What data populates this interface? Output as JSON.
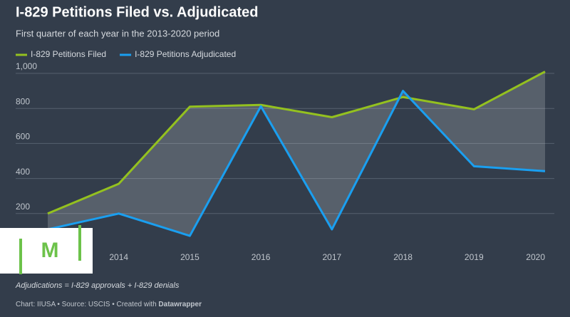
{
  "chart_data": {
    "type": "line",
    "title": "I-829 Petitions Filed vs. Adjudicated",
    "subtitle": "First quarter of each year in the 2013-2020 period",
    "categories": [
      null,
      "2014",
      "2015",
      "2016",
      "2017",
      "2018",
      "2019",
      "2020"
    ],
    "series": [
      {
        "name": "I-829 Petitions Filed",
        "color": "#94c11f",
        "values": [
          200,
          370,
          810,
          820,
          750,
          865,
          795,
          1010
        ]
      },
      {
        "name": "I-829 Petitions Adjudicated",
        "color": "#1a9ff0",
        "values": [
          110,
          200,
          73,
          812,
          110,
          900,
          470,
          442
        ]
      }
    ],
    "fill_between": true,
    "ylim": [
      0,
      1000
    ],
    "yticks": [
      200,
      400,
      600,
      800,
      {
        "value": 1000,
        "label": "1,000"
      }
    ],
    "grid": true,
    "note": "Adjudications = I-829 approvals + I-829 denials",
    "footer": "Chart: IIUSA • Source: USCIS • Created with",
    "credit": "Datawrapper",
    "logo": "M"
  }
}
